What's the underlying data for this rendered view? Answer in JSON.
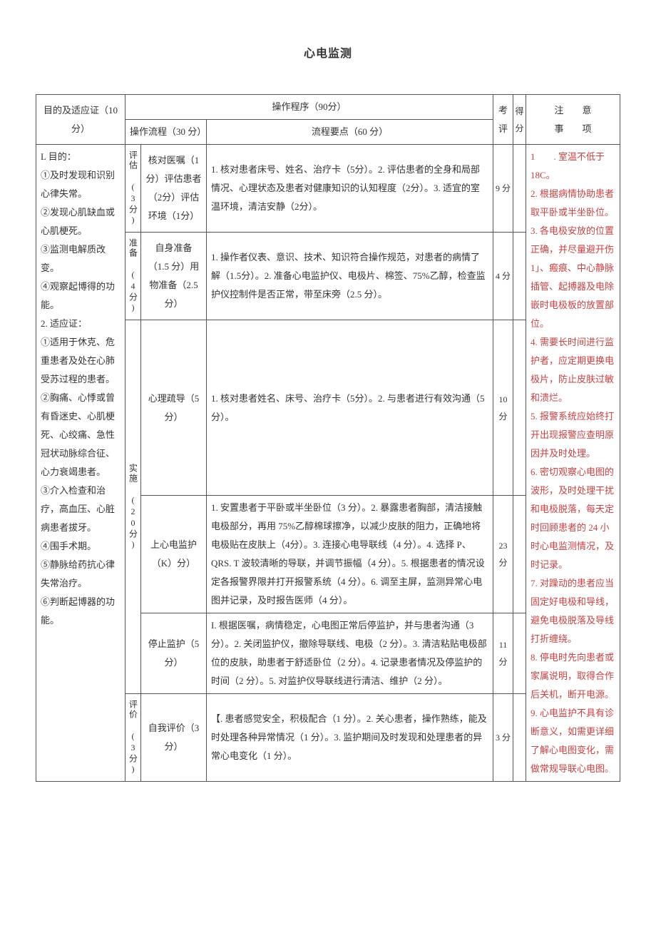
{
  "title": "心电监测",
  "headers": {
    "purpose": "目的及适应证（10分）",
    "procedure": "操作程序（90分）",
    "flow": "操作流程（30 分）",
    "points": "流程要点（60 分）",
    "eval": "考评",
    "score": "得分",
    "notes_a": "注",
    "notes_b": "意",
    "notes_c": "事",
    "notes_d": "项"
  },
  "purpose": "L 目的：\n①及时发现和识别心律失常。\n②发现心肌缺血或心肌梗死。\n③监测电解质改变。\n④观察起博得的功能。\n2. 适应证：\n①适用于休克、危重患者及处在心肺受苏过程的患者。\n②胸痛、心悸或曾有昏迷史、心肌梗死、心绞痛、急性冠状动脉综合征、心力衰竭患者。\n③介入检查和治疗，高血压、心脏病患者拔牙。\n④围手术期。\n⑤静脉给药抗心律失常治疗。\n⑥判断起博器的功能。",
  "rows": [
    {
      "stage": "评估 (3分)",
      "flow": "核对医嘱（1分）评估患者（2分）评估环境（1分）",
      "points": "1. 核对患者床号、姓名、治疗卡（5分）。2. 评估患者的全身和局部情况、心理状态及患者对健康知识的认知程度（2分）。3. 适宜的室温环境，清洁安静（2分）。",
      "eval": "9 分"
    },
    {
      "stage": "准备 (4分)",
      "flow": "自身准备（1.5 分）用物准备（2.5 分）",
      "points": "1. 操作者仪表、意识、技术、知识符合操作规范，对患者的病情了解（1.5分）。2. 准备心电监护仪、电极片、棉签、75%乙醇，检查监护仪控制件是否正常，带至床旁（2.5 分）。",
      "eval": "4 分"
    },
    {
      "stage": "实施 (20分)",
      "sub": [
        {
          "flow": "心理疏导（5分）",
          "points": "1. 核对患者姓名、床号、治疗卡（5分）。2. 与患者进行有效沟通（5 分）。",
          "eval": "10分"
        },
        {
          "flow": "上心电监护（K）分）",
          "points": "1. 安置患者于平卧或半坐卧位（3 分）。2. 暴露患者胸部，清洁接触电极部分，再用 75%乙醇棉球擦净，以减少皮肤的阻力，正确地将电极贴在皮肤上（4分）。3. 连接心电导联线（4 分）。4. 选择 P、QRS. T 波较清晰的导联，并调节振幅（4 分）。5. 根据患者的情况设定各报警界限并打开报警系统（4 分）。6. 调至主屏，监测异常心电图并记录，及时报告医师（4 分）。",
          "eval": "23分"
        },
        {
          "flow": "停止监护（5分）",
          "points": "I. 根据医嘱，病情稳定，心电图正常后停监护，并与患者沟通（3 分）。2. 关闭监护仪，撤除导联线、电极（2 分）。3. 清洁粘贴电极部位的皮肤，助患者于舒适卧位（2 分）。4. 记录患者情况及停监护的时间（2 分）。5. 对监护仪导联线进行清洁、维护（2 分）。",
          "eval": "11分"
        }
      ]
    },
    {
      "stage": "评价 (3分)",
      "flow": "自我评价（3分）",
      "points": "【. 患者感觉安全，积极配合（1 分）。2. 关心患者，操作熟练，能及时处理各种异常情况（1 分）。3. 监护期间及时发现和处理患者的异常心电变化（1 分）。",
      "eval": "3 分"
    }
  ],
  "notes": [
    "1　　. 室温不低于18C。",
    "2. 根据病情协助患者取平卧或半坐卧位。",
    "3. 各电极安放的位置正确，并尽量避开伤 1」、瘢痕、中心静脉插管、起搏器及电除嵌时电极板的放置部位。",
    "4. 需要长时间进行监护者，应定期更换电极片，防止皮肤过敏和溃烂。",
    "5. 报警系统应始终打开出现报警应查明原因并及时处理。",
    "6. 密切观察心电图的波形，及时处理干扰和电极脱落，每天定时回顾患者的 24 小时心电监测情况，及时记录。",
    "7. 对躁动的患者应当固定好电极和导线，避免电极脱落及导线打折缠绕。",
    "8. 停电时先向患者或家属说明，取得合作后关机，断开电源。",
    "9. 心电监护不具有诊断意义，如需更详细了解心电图变化，需做常规导联心电图。"
  ]
}
